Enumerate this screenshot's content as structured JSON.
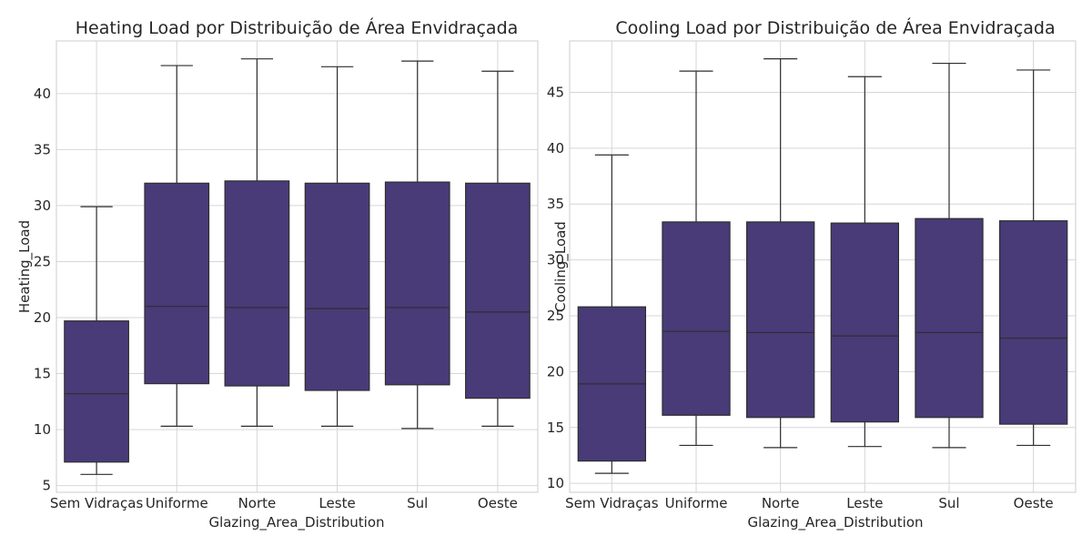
{
  "style": {
    "box_fill": "#483b78",
    "line_color": "#2e2e2e",
    "grid_color": "#d6d6d6",
    "frame_color": "#cccccc"
  },
  "chart_data": [
    {
      "type": "box",
      "title": "Heating Load por Distribuição de Área Envidraçada",
      "xlabel": "Glazing_Area_Distribution",
      "ylabel": "Heating_Load",
      "categories": [
        "Sem Vidraças",
        "Uniforme",
        "Norte",
        "Leste",
        "Sul",
        "Oeste"
      ],
      "ylim": [
        4.4,
        44.7
      ],
      "yticks": [
        5,
        10,
        15,
        20,
        25,
        30,
        35,
        40
      ],
      "grid": true,
      "boxes": [
        {
          "whislo": 6.0,
          "q1": 7.1,
          "med": 13.2,
          "q3": 19.7,
          "whishi": 29.9
        },
        {
          "whislo": 10.3,
          "q1": 14.1,
          "med": 21.0,
          "q3": 32.0,
          "whishi": 42.5
        },
        {
          "whislo": 10.3,
          "q1": 13.9,
          "med": 20.9,
          "q3": 32.2,
          "whishi": 43.1
        },
        {
          "whislo": 10.3,
          "q1": 13.5,
          "med": 20.8,
          "q3": 32.0,
          "whishi": 42.4
        },
        {
          "whislo": 10.1,
          "q1": 14.0,
          "med": 20.9,
          "q3": 32.1,
          "whishi": 42.9
        },
        {
          "whislo": 10.3,
          "q1": 12.8,
          "med": 20.5,
          "q3": 32.0,
          "whishi": 42.0
        }
      ]
    },
    {
      "type": "box",
      "title": "Cooling Load por Distribuição de Área Envidraçada",
      "xlabel": "Glazing_Area_Distribution",
      "ylabel": "Cooling_Load",
      "categories": [
        "Sem Vidraças",
        "Uniforme",
        "Norte",
        "Leste",
        "Sul",
        "Oeste"
      ],
      "ylim": [
        9.2,
        49.6
      ],
      "yticks": [
        10,
        15,
        20,
        25,
        30,
        35,
        40,
        45
      ],
      "grid": true,
      "boxes": [
        {
          "whislo": 10.9,
          "q1": 12.0,
          "med": 18.9,
          "q3": 25.8,
          "whishi": 39.4
        },
        {
          "whislo": 13.4,
          "q1": 16.1,
          "med": 23.6,
          "q3": 33.4,
          "whishi": 46.9
        },
        {
          "whislo": 13.2,
          "q1": 15.9,
          "med": 23.5,
          "q3": 33.4,
          "whishi": 48.0
        },
        {
          "whislo": 13.3,
          "q1": 15.5,
          "med": 23.2,
          "q3": 33.3,
          "whishi": 46.4
        },
        {
          "whislo": 13.2,
          "q1": 15.9,
          "med": 23.5,
          "q3": 33.7,
          "whishi": 47.6
        },
        {
          "whislo": 13.4,
          "q1": 15.3,
          "med": 23.0,
          "q3": 33.5,
          "whishi": 47.0
        }
      ]
    }
  ]
}
